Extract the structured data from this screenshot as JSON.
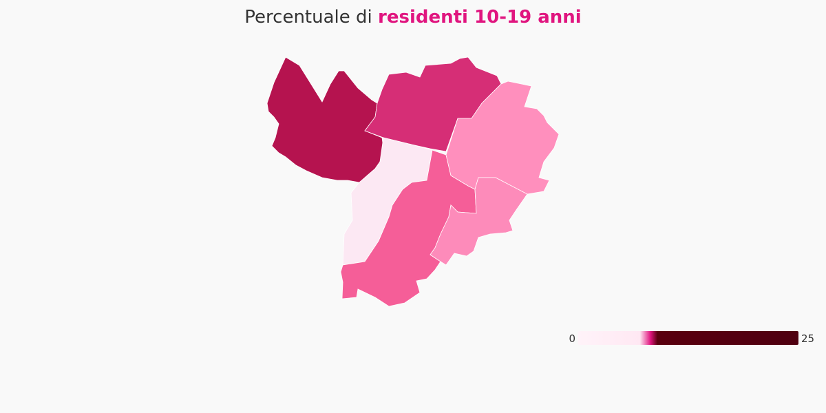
{
  "chart_data": {
    "type": "choropleth",
    "title": {
      "prefix": "Percentuale di",
      "highlight": "residenti 10-19 anni",
      "highlight_color": "#e0157f"
    },
    "regions": [
      {
        "value": 9.1,
        "color": "#b5134f"
      },
      {
        "value": 8.7,
        "color": "#d62e76"
      },
      {
        "value": 6.5,
        "color": "#fce8f3"
      },
      {
        "value": 8.3,
        "color": "#f55e98"
      },
      {
        "value": 7.9,
        "color": "#ff8fbd"
      },
      {
        "value": 7.8,
        "color": "#fd8bba"
      }
    ],
    "colorbar": {
      "min": 0,
      "max": 25,
      "stops": [
        {
          "value": 0,
          "color": "#fff3f9"
        },
        {
          "value": 7,
          "color": "#ffe8f3"
        },
        {
          "value": 8.2,
          "color": "#e0157f"
        },
        {
          "value": 9,
          "color": "#5a000f"
        },
        {
          "value": 25,
          "color": "#4f0010"
        }
      ]
    }
  }
}
